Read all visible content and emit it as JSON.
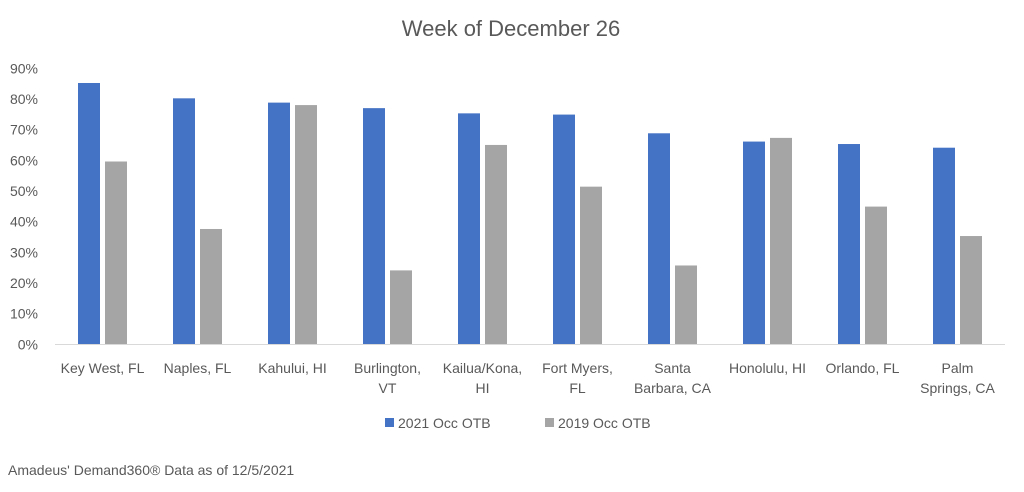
{
  "chart_data": {
    "type": "bar",
    "title": "Week of December 26",
    "categories": [
      "Key West, FL",
      "Naples, FL",
      "Kahului, HI",
      "Burlington, VT",
      "Kailua/Kona, HI",
      "Fort Myers, FL",
      "Santa Barbara, CA",
      "Honolulu, HI",
      "Orlando, FL",
      "Palm Springs, CA"
    ],
    "category_lines": [
      [
        "Key West, FL"
      ],
      [
        "Naples, FL"
      ],
      [
        "Kahului, HI"
      ],
      [
        "Burlington,",
        "VT"
      ],
      [
        "Kailua/Kona,",
        "HI"
      ],
      [
        "Fort Myers,",
        "FL"
      ],
      [
        "Santa",
        "Barbara, CA"
      ],
      [
        "Honolulu, HI"
      ],
      [
        "Orlando, FL"
      ],
      [
        "Palm",
        "Springs, CA"
      ]
    ],
    "series": [
      {
        "name": "2021 Occ OTB",
        "color": "#4472C4",
        "values": [
          85.2,
          80.2,
          78.8,
          77.0,
          75.3,
          74.9,
          68.8,
          66.1,
          65.3,
          64.1
        ]
      },
      {
        "name": "2019 Occ OTB",
        "color": "#A5A5A5",
        "values": [
          59.6,
          37.6,
          78.0,
          24.1,
          65.0,
          51.4,
          25.7,
          67.3,
          44.9,
          35.3
        ]
      }
    ],
    "ylim": [
      0,
      90
    ],
    "yticks": [
      "0%",
      "10%",
      "20%",
      "30%",
      "40%",
      "50%",
      "60%",
      "70%",
      "80%",
      "90%"
    ],
    "grid": false,
    "legend": "bottom",
    "xlabel": "",
    "ylabel": ""
  },
  "footer": "Amadeus' Demand360® Data as of 12/5/2021"
}
